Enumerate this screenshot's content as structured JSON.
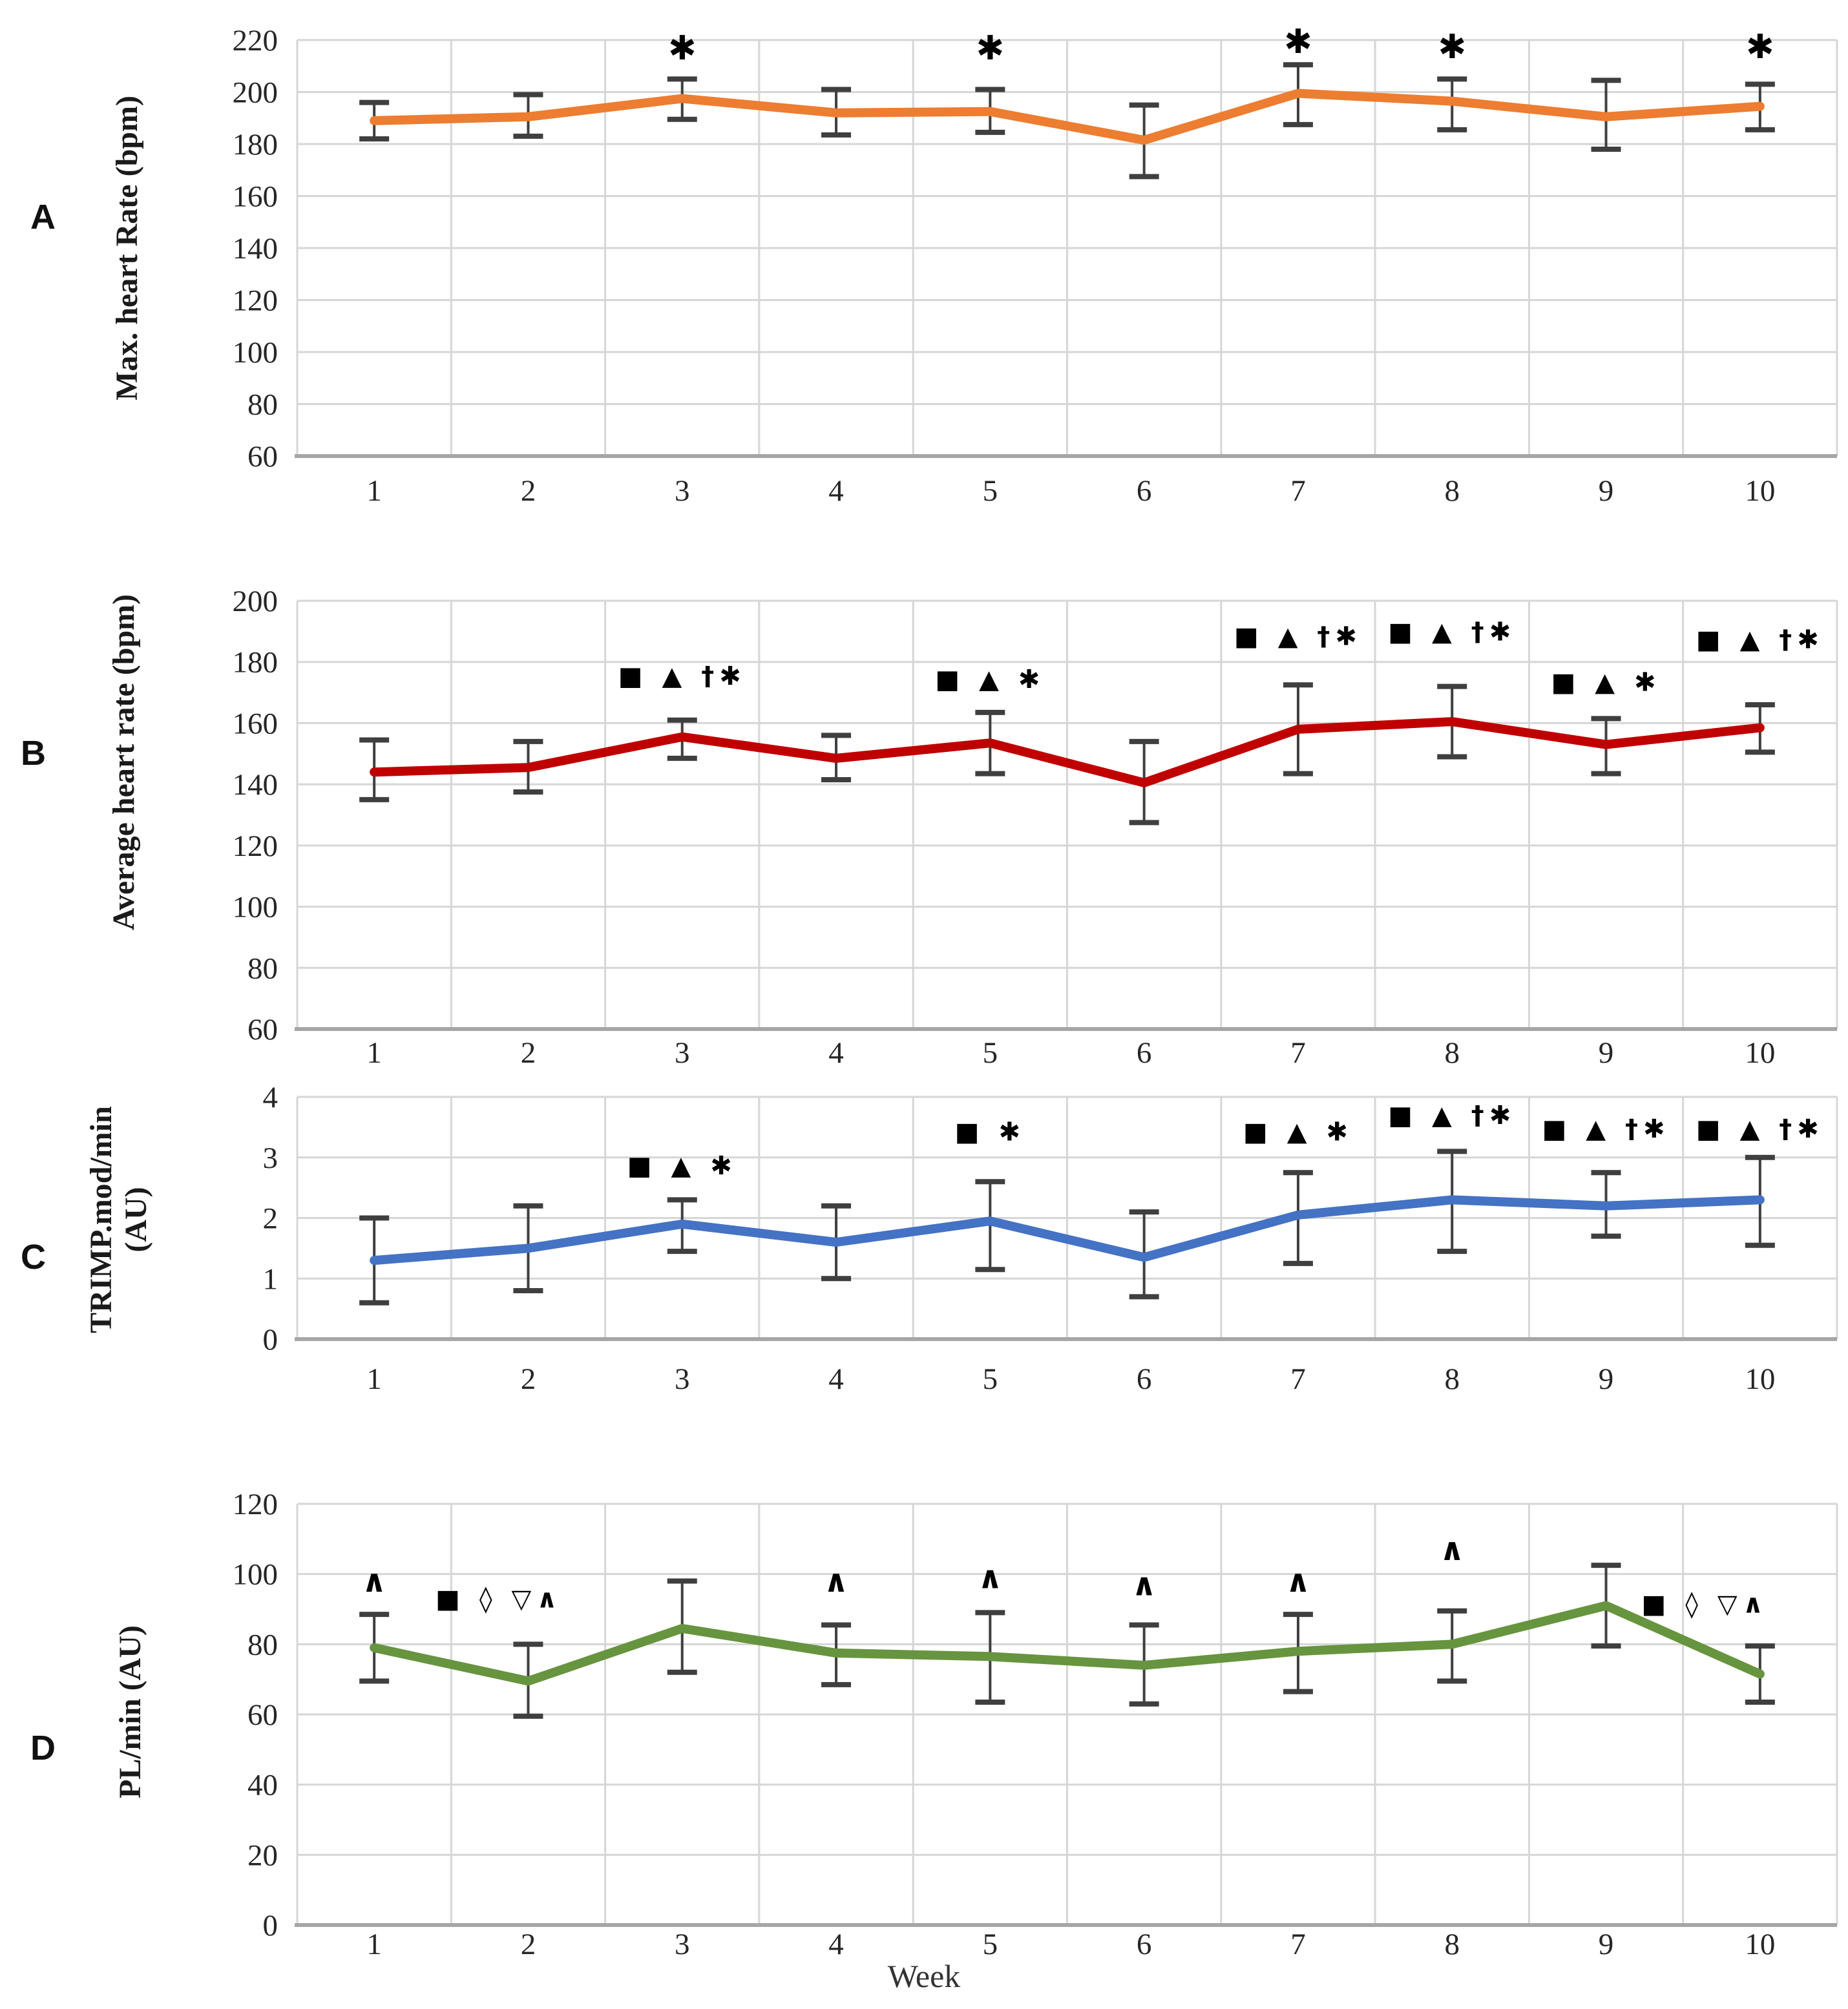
{
  "figure": {
    "xlabel": "Week"
  },
  "chart_data": [
    {
      "type": "line",
      "letter": "A",
      "ylabel": "Max. heart Rate (bpm)",
      "color": "#ED7D31",
      "categories": [
        "1",
        "2",
        "3",
        "4",
        "5",
        "6",
        "7",
        "8",
        "9",
        "10"
      ],
      "ymin": 60,
      "ymax": 220,
      "yticks": [
        220,
        200,
        180,
        160,
        140,
        120,
        100,
        80,
        60
      ],
      "values": [
        189,
        190.5,
        197.5,
        192,
        192.5,
        181.5,
        199.5,
        196.5,
        190.5,
        194.5
      ],
      "err_lo": [
        182,
        183,
        189.5,
        183.5,
        184.5,
        167.5,
        187.5,
        185.5,
        178,
        185.5
      ],
      "err_hi": [
        196,
        199,
        205,
        201,
        201,
        195,
        210.5,
        205,
        204.5,
        203
      ],
      "annotations": [
        {
          "week": 3,
          "text": "✱",
          "y": 212.5
        },
        {
          "week": 5,
          "text": "✱",
          "y": 212.5
        },
        {
          "week": 7,
          "text": "✱",
          "y": 215
        },
        {
          "week": 8,
          "text": "✱",
          "y": 213
        },
        {
          "week": 10,
          "text": "✱",
          "y": 213
        }
      ]
    },
    {
      "type": "line",
      "letter": "B",
      "ylabel": "Average heart rate (bpm)",
      "color": "#C00000",
      "categories": [
        "1",
        "2",
        "3",
        "4",
        "5",
        "6",
        "7",
        "8",
        "9",
        "10"
      ],
      "ymin": 60,
      "ymax": 200,
      "yticks": [
        200,
        180,
        160,
        140,
        120,
        100,
        80,
        60
      ],
      "values": [
        144,
        145.5,
        155.5,
        148.5,
        153.5,
        140.5,
        158,
        160.5,
        153,
        158.5
      ],
      "err_lo": [
        135,
        137.5,
        148.5,
        141.5,
        143.5,
        127.5,
        143.5,
        149,
        143.5,
        150.5
      ],
      "err_hi": [
        154.5,
        154,
        161,
        156,
        163.5,
        154,
        172.5,
        172,
        161.5,
        166
      ],
      "annotations": [
        {
          "week": 3,
          "text": "■ ▲ †✱",
          "y": 172.5
        },
        {
          "week": 5,
          "text": "■ ▲ ✱",
          "y": 171.5
        },
        {
          "week": 7,
          "text": "■ ▲ †✱",
          "y": 185.5
        },
        {
          "week": 8,
          "text": "■ ▲ †✱",
          "y": 187
        },
        {
          "week": 9,
          "text": "■ ▲ ✱",
          "y": 170.5
        },
        {
          "week": 10,
          "text": "■ ▲ †✱",
          "y": 184.5
        }
      ]
    },
    {
      "type": "line",
      "letter": "C",
      "ylabel": "TRIMP.mod/min (AU)",
      "color": "#4472C4",
      "categories": [
        "1",
        "2",
        "3",
        "4",
        "5",
        "6",
        "7",
        "8",
        "9",
        "10"
      ],
      "ymin": 0,
      "ymax": 4,
      "yticks": [
        4,
        3,
        2,
        1,
        0
      ],
      "values": [
        1.3,
        1.5,
        1.9,
        1.6,
        1.95,
        1.35,
        2.05,
        2.3,
        2.2,
        2.3
      ],
      "err_lo": [
        0.6,
        0.8,
        1.45,
        1.0,
        1.15,
        0.7,
        1.25,
        1.45,
        1.7,
        1.55
      ],
      "err_hi": [
        2.0,
        2.2,
        2.3,
        2.2,
        2.6,
        2.1,
        2.75,
        3.1,
        2.75,
        3.0
      ],
      "annotations": [
        {
          "week": 3,
          "text": "■ ▲ ✱",
          "y": 2.72
        },
        {
          "week": 5,
          "text": "■ ✱",
          "y": 3.28
        },
        {
          "week": 7,
          "text": "■ ▲ ✱",
          "y": 3.28
        },
        {
          "week": 8,
          "text": "■ ▲ †✱",
          "y": 3.55
        },
        {
          "week": 9,
          "text": "■ ▲ †✱",
          "y": 3.33
        },
        {
          "week": 10,
          "text": "■ ▲ †✱",
          "y": 3.33
        }
      ]
    },
    {
      "type": "line",
      "letter": "D",
      "ylabel": "PL/min (AU)",
      "color": "#67943F",
      "categories": [
        "1",
        "2",
        "3",
        "4",
        "5",
        "6",
        "7",
        "8",
        "9",
        "10"
      ],
      "ymin": 0,
      "ymax": 120,
      "yticks": [
        120,
        100,
        80,
        60,
        40,
        20,
        0
      ],
      "values": [
        79,
        69.5,
        84.5,
        77.5,
        76.5,
        74,
        78,
        80,
        91,
        71.5
      ],
      "err_lo": [
        69.5,
        59.5,
        72,
        68.5,
        63.5,
        63,
        66.5,
        69.5,
        79.5,
        63.5
      ],
      "err_hi": [
        88.5,
        80,
        98,
        85.5,
        89,
        85.5,
        88.5,
        89.5,
        102.5,
        79.5
      ],
      "annotations": [
        {
          "week": 1,
          "text": "∧",
          "y": 95
        },
        {
          "week": 2,
          "text": "■ ◊ ▽∧",
          "y": 90.5,
          "dx": -45
        },
        {
          "week": 4,
          "text": "∧",
          "y": 95
        },
        {
          "week": 5,
          "text": "∧",
          "y": 96
        },
        {
          "week": 6,
          "text": "∧",
          "y": 94
        },
        {
          "week": 7,
          "text": "∧",
          "y": 95
        },
        {
          "week": 8,
          "text": "∧",
          "y": 104
        },
        {
          "week": 10,
          "text": "■ ◊ ▽∧",
          "y": 89,
          "dx": -85
        }
      ]
    }
  ]
}
